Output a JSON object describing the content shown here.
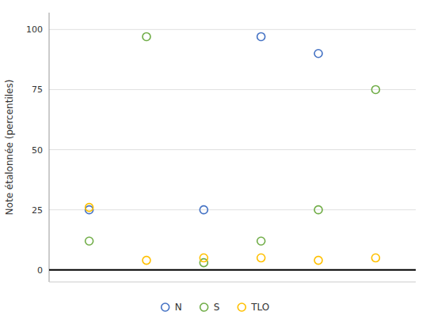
{
  "chart_data": {
    "type": "scatter",
    "ylabel": "Note étalonnée (percentiles)",
    "series": [
      {
        "name": "N",
        "color": "#4472c4",
        "x": [
          1,
          3,
          4,
          5
        ],
        "values": [
          25,
          25,
          97,
          90
        ]
      },
      {
        "name": "S",
        "color": "#70ad47",
        "x": [
          1,
          2,
          3,
          4,
          5,
          6
        ],
        "values": [
          12,
          97,
          3,
          12,
          25,
          75
        ]
      },
      {
        "name": "TLO",
        "color": "#ffc000",
        "x": [
          1,
          2,
          3,
          4,
          5,
          6
        ],
        "values": [
          26,
          4,
          5,
          5,
          4,
          5
        ]
      }
    ],
    "xlim": [
      0.3,
      6.7
    ],
    "ylim": [
      -5,
      107
    ],
    "yticks": [
      0,
      25,
      50,
      75,
      100
    ],
    "grid": true,
    "legend": "bottom",
    "tick_labels": "y",
    "marker": "circle"
  }
}
